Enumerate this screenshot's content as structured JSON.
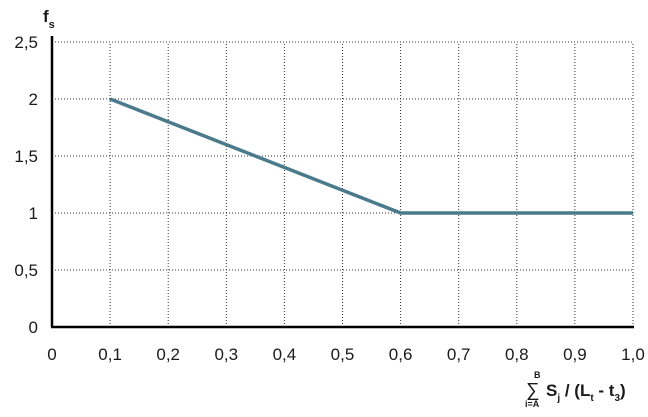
{
  "chart_data": {
    "type": "line",
    "title": "",
    "ylabel": {
      "main": "f",
      "sub": "s"
    },
    "xlabel": {
      "sum_top": "B",
      "sum_symbol": "∑",
      "sum_bottom": "i=A",
      "term_main": "S",
      "term_sub": "j",
      "middle": " / (L",
      "l_sub": "t",
      "minus": " - t",
      "t_sub": "3",
      "close": ")"
    },
    "xlim": [
      0,
      1.0
    ],
    "ylim": [
      0,
      2.5
    ],
    "x_ticks": [
      0,
      0.1,
      0.2,
      0.3,
      0.4,
      0.5,
      0.6,
      0.7,
      0.8,
      0.9,
      1.0
    ],
    "x_tick_labels": [
      "0",
      "0,1",
      "0,2",
      "0,3",
      "0,4",
      "0,5",
      "0,6",
      "0,7",
      "0,8",
      "0,9",
      "1,0"
    ],
    "y_ticks": [
      0,
      0.5,
      1,
      1.5,
      2,
      2.5
    ],
    "y_tick_labels": [
      "0",
      "0,5",
      "1",
      "1,5",
      "2",
      "2,5"
    ],
    "grid": true,
    "series": [
      {
        "x": [
          0.1,
          0.6,
          1.0
        ],
        "y": [
          2,
          1,
          1
        ]
      }
    ],
    "colors": {
      "line": "#4a7a8c",
      "axis": "#000000",
      "grid": "#333333"
    }
  }
}
